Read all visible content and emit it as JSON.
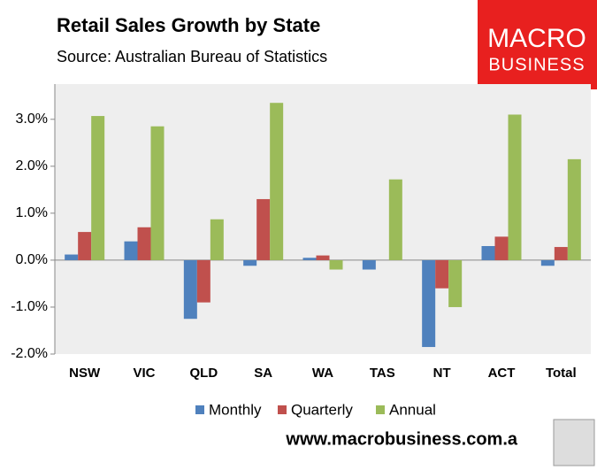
{
  "chart_data": {
    "type": "bar",
    "title": "Retail Sales Growth by State",
    "subtitle": "Source: Australian Bureau of Statistics",
    "annotations": [
      "MACRO",
      "BUSINESS",
      "www.macrobusiness.com.a"
    ],
    "categories": [
      "NSW",
      "VIC",
      "QLD",
      "SA",
      "WA",
      "TAS",
      "NT",
      "ACT",
      "Total"
    ],
    "series": [
      {
        "name": "Monthly",
        "color": "#4f81bd",
        "values": [
          0.12,
          0.4,
          -1.25,
          -0.12,
          0.05,
          -0.2,
          -1.85,
          0.3,
          -0.12
        ]
      },
      {
        "name": "Quarterly",
        "color": "#c0504d",
        "values": [
          0.6,
          0.7,
          -0.9,
          1.3,
          0.1,
          0,
          -0.6,
          0.5,
          0.28
        ]
      },
      {
        "name": "Annual",
        "color": "#9bbb59",
        "values": [
          3.07,
          2.85,
          0.87,
          3.35,
          -0.2,
          1.72,
          -1.0,
          3.1,
          2.15
        ]
      }
    ],
    "ylim": [
      -2,
      3.75
    ],
    "yticks": [
      {
        "value": -2,
        "label": "-2.0%"
      },
      {
        "value": -1,
        "label": "-1.0%"
      },
      {
        "value": 0,
        "label": "0.0%"
      },
      {
        "value": 1,
        "label": "1.0%"
      },
      {
        "value": 2,
        "label": "2.0%"
      },
      {
        "value": 3,
        "label": "3.0%"
      }
    ],
    "grid": false,
    "legend": "bottom"
  }
}
